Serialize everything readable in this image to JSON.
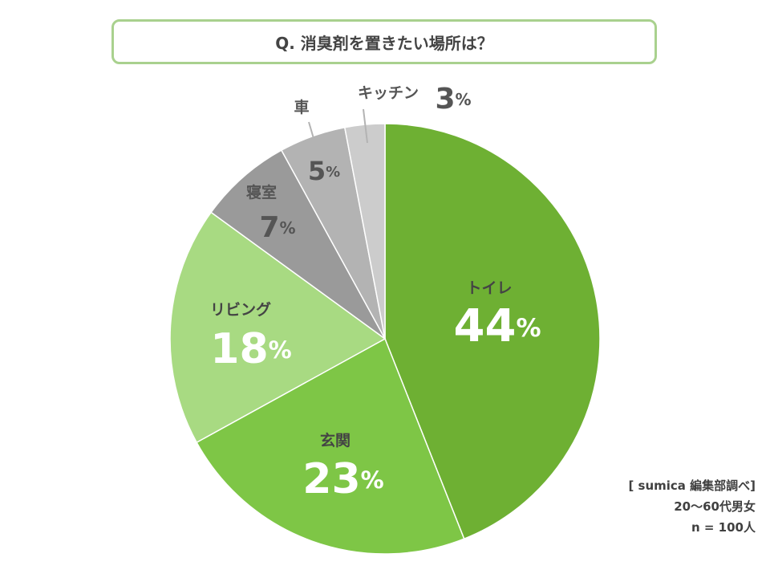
{
  "title": "Q. 消臭剤を置きたい場所は？",
  "chart_data": {
    "type": "pie",
    "title": "Q. 消臭剤を置きたい場所は？",
    "slices": [
      {
        "label": "トイレ",
        "value": 44,
        "unit": "%",
        "color": "#6eb033"
      },
      {
        "label": "玄関",
        "value": 23,
        "unit": "%",
        "color": "#7ec646"
      },
      {
        "label": "リビング",
        "value": 18,
        "unit": "%",
        "color": "#a8da82"
      },
      {
        "label": "寝室",
        "value": 7,
        "unit": "%",
        "color": "#9a9a9a"
      },
      {
        "label": "車",
        "value": 5,
        "unit": "%",
        "color": "#b3b3b3"
      },
      {
        "label": "キッチン",
        "value": 3,
        "unit": "%",
        "color": "#cccccc"
      }
    ]
  },
  "source": {
    "line1": "[ sumica 編集部調べ]",
    "line2": "20〜60代男女",
    "line3": "n = 100人"
  }
}
